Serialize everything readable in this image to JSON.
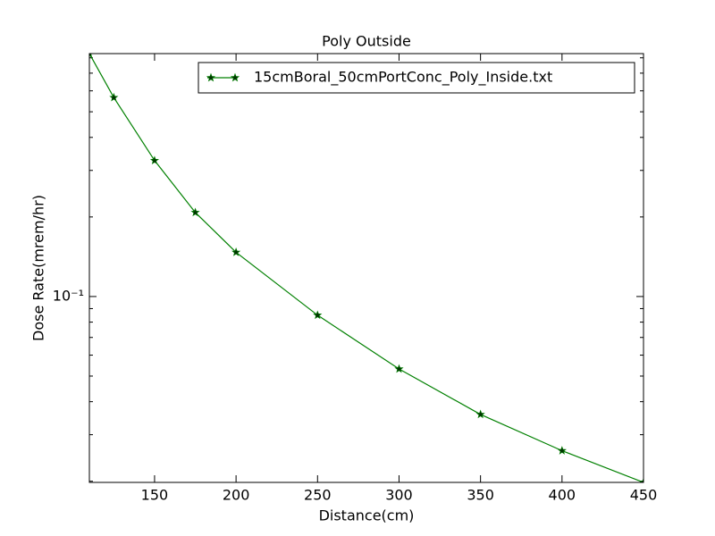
{
  "chart_data": {
    "type": "line",
    "title": "Poly Outside",
    "xlabel": "Distance(cm)",
    "ylabel": "Dose Rate(mrem/hr)",
    "x": [
      110,
      125,
      150,
      175,
      200,
      250,
      300,
      350,
      400,
      450
    ],
    "series": [
      {
        "name": "15cmBoral_50cmPortConc_Poly_Inside.txt",
        "color": "#008000",
        "marker_color": "#003300",
        "values": [
          0.83,
          0.566,
          0.327,
          0.208,
          0.147,
          0.085,
          0.0532,
          0.0358,
          0.0261,
          0.0198
        ]
      }
    ],
    "xlim": [
      110,
      450
    ],
    "xticks": [
      150,
      200,
      250,
      300,
      350,
      400,
      450
    ],
    "ylim": [
      0.0198,
      0.83
    ],
    "yscale": "log",
    "yticks": [
      {
        "value": 0.1,
        "label": "10⁻¹"
      }
    ],
    "yminorticks": [
      0.02,
      0.03,
      0.04,
      0.05,
      0.06,
      0.07,
      0.08,
      0.09,
      0.2,
      0.3,
      0.4,
      0.5,
      0.6,
      0.7,
      0.8
    ],
    "legend": "upper right",
    "grid": false
  }
}
